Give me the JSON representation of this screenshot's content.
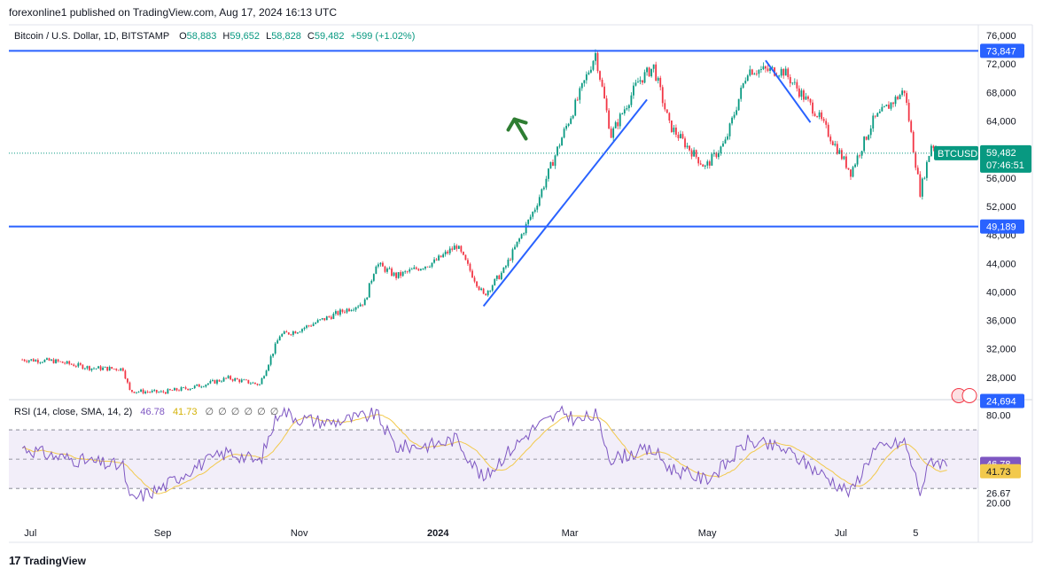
{
  "header": {
    "text": "forexonline1 published on TradingView.com, Aug 17, 2024 16:13 UTC"
  },
  "legend": {
    "symbol": "Bitcoin / U.S. Dollar, 1D, BITSTAMP",
    "o_label": "O",
    "o": "58,883",
    "h_label": "H",
    "h": "59,652",
    "l_label": "L",
    "l": "58,828",
    "c_label": "C",
    "c": "59,482",
    "change": "+599 (+1.02%)"
  },
  "rsi_legend": {
    "label": "RSI (14, close, SMA, 14, 2)",
    "rsi": "46.78",
    "sma": "41.73",
    "hidden_icons": "∅ ∅ ∅ ∅ ∅ ∅"
  },
  "footer": {
    "logo": "17",
    "brand": "TradingView"
  },
  "colors": {
    "up": "#089981",
    "down": "#f23645",
    "line": "#2962ff",
    "rsi": "#7e57c2",
    "rsi_ma": "#f2c94c",
    "arrow": "#2e7d32"
  },
  "chart_data": {
    "type": "candlestick",
    "symbol": "BTCUSD",
    "price_axis_ticks": [
      "76,000",
      "72,000",
      "68,000",
      "64,000",
      "60,000",
      "56,000",
      "52,000",
      "48,000",
      "44,000",
      "40,000",
      "36,000",
      "32,000",
      "28,000"
    ],
    "ylim": [
      25000,
      77500
    ],
    "x_tick_labels": [
      "Jul",
      "Sep",
      "Nov",
      "2024",
      "Mar",
      "May",
      "Jul",
      "5"
    ],
    "horizontal_levels": [
      {
        "price": 73847,
        "label": "73,847"
      },
      {
        "price": 49189,
        "label": "49,189"
      }
    ],
    "price_tags": {
      "symbol_tag": "BTCUSD",
      "last": "59,482",
      "countdown": "07:46:51",
      "low_marker": "24,694"
    },
    "close_path": [
      [
        "2023-07-01",
        30500
      ],
      [
        "2023-07-15",
        30300
      ],
      [
        "2023-08-01",
        29300
      ],
      [
        "2023-08-15",
        29200
      ],
      [
        "2023-08-18",
        26100
      ],
      [
        "2023-09-01",
        25900
      ],
      [
        "2023-09-15",
        26600
      ],
      [
        "2023-10-01",
        27900
      ],
      [
        "2023-10-15",
        27000
      ],
      [
        "2023-10-24",
        33900
      ],
      [
        "2023-11-01",
        34600
      ],
      [
        "2023-11-15",
        36500
      ],
      [
        "2023-12-01",
        38600
      ],
      [
        "2023-12-06",
        44000
      ],
      [
        "2023-12-15",
        42200
      ],
      [
        "2024-01-01",
        44200
      ],
      [
        "2024-01-11",
        46500
      ],
      [
        "2024-01-23",
        39500
      ],
      [
        "2024-02-01",
        43000
      ],
      [
        "2024-02-15",
        51800
      ],
      [
        "2024-02-28",
        62500
      ],
      [
        "2024-03-05",
        67000
      ],
      [
        "2024-03-13",
        73500
      ],
      [
        "2024-03-20",
        62000
      ],
      [
        "2024-04-01",
        69500
      ],
      [
        "2024-04-08",
        71600
      ],
      [
        "2024-04-15",
        63400
      ],
      [
        "2024-05-01",
        57500
      ],
      [
        "2024-05-10",
        61000
      ],
      [
        "2024-05-20",
        71200
      ],
      [
        "2024-06-05",
        71000
      ],
      [
        "2024-06-20",
        65000
      ],
      [
        "2024-07-05",
        56800
      ],
      [
        "2024-07-15",
        64000
      ],
      [
        "2024-07-29",
        68300
      ],
      [
        "2024-08-05",
        54000
      ],
      [
        "2024-08-10",
        60700
      ],
      [
        "2024-08-17",
        59482
      ]
    ],
    "trendlines": [
      {
        "from": [
          "2024-01-23",
          38000
        ],
        "to": [
          "2024-04-05",
          67000
        ]
      },
      {
        "from": [
          "2024-05-28",
          72500
        ],
        "to": [
          "2024-06-17",
          63800
        ]
      }
    ],
    "rsi": {
      "axis_ticks": [
        "80.00",
        "49.26",
        "26.67",
        "20.00"
      ],
      "levels": [
        70,
        50,
        30
      ],
      "last_rsi": "46.78",
      "last_sma": "41.73",
      "values": [
        [
          "2023-07-01",
          58
        ],
        [
          "2023-07-15",
          52
        ],
        [
          "2023-08-01",
          48
        ],
        [
          "2023-08-15",
          45
        ],
        [
          "2023-08-18",
          22
        ],
        [
          "2023-09-01",
          30
        ],
        [
          "2023-09-15",
          44
        ],
        [
          "2023-10-01",
          55
        ],
        [
          "2023-10-15",
          48
        ],
        [
          "2023-10-24",
          84
        ],
        [
          "2023-11-01",
          78
        ],
        [
          "2023-11-15",
          75
        ],
        [
          "2023-12-01",
          79
        ],
        [
          "2023-12-06",
          81
        ],
        [
          "2023-12-15",
          58
        ],
        [
          "2024-01-01",
          60
        ],
        [
          "2024-01-11",
          64
        ],
        [
          "2024-01-23",
          36
        ],
        [
          "2024-02-01",
          52
        ],
        [
          "2024-02-15",
          72
        ],
        [
          "2024-02-28",
          82
        ],
        [
          "2024-03-05",
          76
        ],
        [
          "2024-03-13",
          80
        ],
        [
          "2024-03-20",
          50
        ],
        [
          "2024-04-01",
          55
        ],
        [
          "2024-04-08",
          56
        ],
        [
          "2024-04-15",
          44
        ],
        [
          "2024-05-01",
          36
        ],
        [
          "2024-05-10",
          46
        ],
        [
          "2024-05-20",
          62
        ],
        [
          "2024-06-05",
          57
        ],
        [
          "2024-06-20",
          42
        ],
        [
          "2024-07-05",
          27
        ],
        [
          "2024-07-15",
          56
        ],
        [
          "2024-07-29",
          62
        ],
        [
          "2024-08-05",
          28
        ],
        [
          "2024-08-10",
          50
        ],
        [
          "2024-08-17",
          46.78
        ]
      ]
    },
    "annotation": "up-arrow"
  }
}
